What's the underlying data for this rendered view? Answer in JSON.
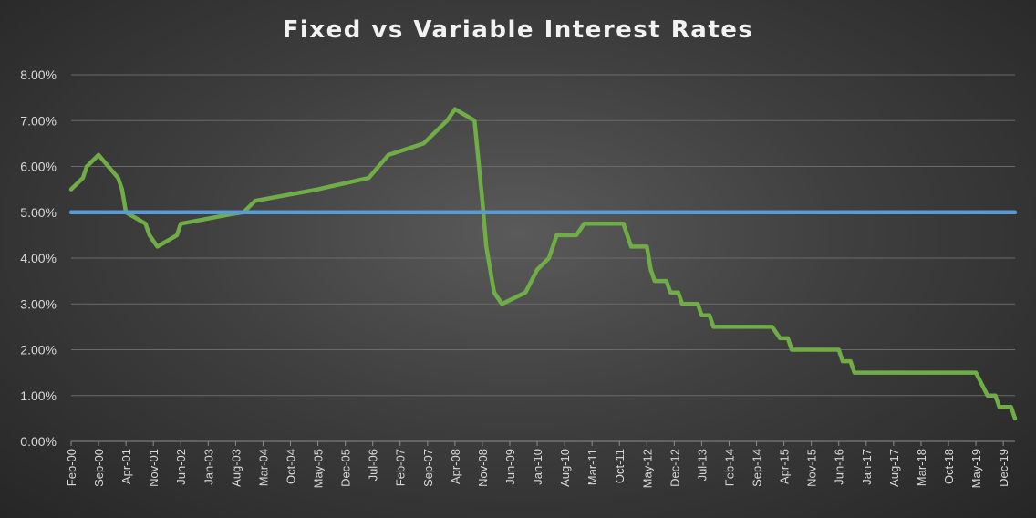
{
  "chart_data": {
    "type": "line",
    "title": "Fixed vs Variable Interest Rates",
    "xlabel": "",
    "ylabel": "",
    "ylim": [
      0,
      0.08
    ],
    "y_ticks": [
      "0.00%",
      "1.00%",
      "2.00%",
      "3.00%",
      "4.00%",
      "5.00%",
      "6.00%",
      "7.00%",
      "8.00%"
    ],
    "x_range": [
      "2000-02",
      "2020-03"
    ],
    "x_ticks": [
      "Feb-00",
      "Sep-00",
      "Apr-01",
      "Nov-01",
      "Jun-02",
      "Jan-03",
      "Aug-03",
      "Mar-04",
      "Oct-04",
      "May-05",
      "Dec-05",
      "Jul-06",
      "Feb-07",
      "Sep-07",
      "Apr-08",
      "Nov-08",
      "Jun-09",
      "Jan-10",
      "Aug-10",
      "Mar-11",
      "Oct-11",
      "May-12",
      "Dec-12",
      "Jul-13",
      "Feb-14",
      "Sep-14",
      "Apr-15",
      "Nov-15",
      "Jun-16",
      "Jan-17",
      "Aug-17",
      "Mar-18",
      "Oct-18",
      "May-19",
      "Dec-19"
    ],
    "grid": true,
    "legend": "none",
    "series": [
      {
        "color": "#70ad47",
        "points": [
          [
            "2000-02",
            0.055
          ],
          [
            "2000-05",
            0.0575
          ],
          [
            "2000-06",
            0.06
          ],
          [
            "2000-09",
            0.0625
          ],
          [
            "2001-02",
            0.0575
          ],
          [
            "2001-03",
            0.055
          ],
          [
            "2001-04",
            0.05
          ],
          [
            "2001-09",
            0.0475
          ],
          [
            "2001-10",
            0.045
          ],
          [
            "2001-12",
            0.0425
          ],
          [
            "2002-05",
            0.045
          ],
          [
            "2002-06",
            0.0475
          ],
          [
            "2003-08",
            0.04975
          ],
          [
            "2003-10",
            0.05
          ],
          [
            "2004-01",
            0.0525
          ],
          [
            "2005-05",
            0.055
          ],
          [
            "2006-06",
            0.0575
          ],
          [
            "2006-11",
            0.0625
          ],
          [
            "2007-08",
            0.065
          ],
          [
            "2008-02",
            0.07
          ],
          [
            "2008-04",
            0.0725
          ],
          [
            "2008-09",
            0.07
          ],
          [
            "2008-11",
            0.0525
          ],
          [
            "2008-12",
            0.0425
          ],
          [
            "2009-02",
            0.0325
          ],
          [
            "2009-04",
            0.03
          ],
          [
            "2009-10",
            0.0325
          ],
          [
            "2010-01",
            0.0375
          ],
          [
            "2010-04",
            0.04
          ],
          [
            "2010-06",
            0.045
          ],
          [
            "2010-11",
            0.045
          ],
          [
            "2011-01",
            0.0475
          ],
          [
            "2011-11",
            0.0475
          ],
          [
            "2012-01",
            0.0425
          ],
          [
            "2012-05",
            0.0425
          ],
          [
            "2012-06",
            0.0375
          ],
          [
            "2012-07",
            0.035
          ],
          [
            "2012-10",
            0.035
          ],
          [
            "2012-11",
            0.0325
          ],
          [
            "2013-01",
            0.0325
          ],
          [
            "2013-02",
            0.03
          ],
          [
            "2013-06",
            0.03
          ],
          [
            "2013-07",
            0.0275
          ],
          [
            "2013-09",
            0.0275
          ],
          [
            "2013-10",
            0.025
          ],
          [
            "2015-01",
            0.025
          ],
          [
            "2015-03",
            0.0225
          ],
          [
            "2015-05",
            0.0225
          ],
          [
            "2015-06",
            0.02
          ],
          [
            "2016-06",
            0.02
          ],
          [
            "2016-07",
            0.0175
          ],
          [
            "2016-09",
            0.0175
          ],
          [
            "2016-10",
            0.015
          ],
          [
            "2019-05",
            0.015
          ],
          [
            "2019-08",
            0.01
          ],
          [
            "2019-10",
            0.01
          ],
          [
            "2019-11",
            0.0075
          ],
          [
            "2020-02",
            0.0075
          ],
          [
            "2020-03",
            0.005
          ]
        ]
      },
      {
        "color": "#5b9bd5",
        "points": [
          [
            "2000-02",
            0.05
          ],
          [
            "2020-03",
            0.05
          ]
        ]
      }
    ]
  }
}
